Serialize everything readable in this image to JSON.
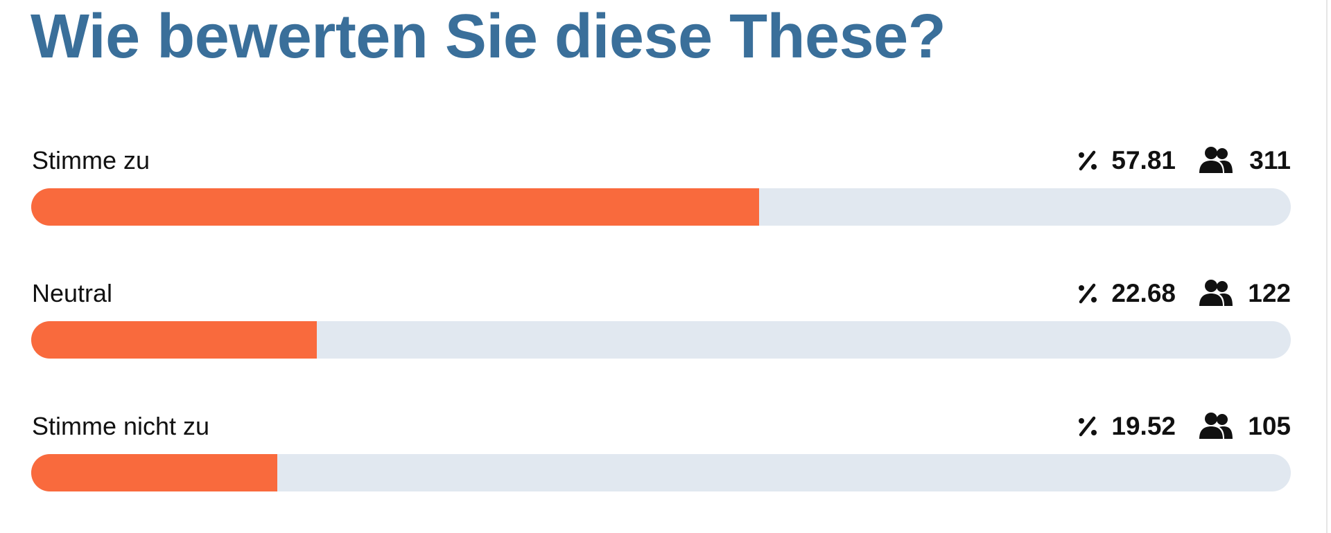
{
  "title": "Wie bewerten Sie diese These?",
  "options": [
    {
      "label": "Stimme zu",
      "percent": 57.81,
      "count": 311
    },
    {
      "label": "Neutral",
      "percent": 22.68,
      "count": 122
    },
    {
      "label": "Stimme nicht zu",
      "percent": 19.52,
      "count": 105
    }
  ]
}
